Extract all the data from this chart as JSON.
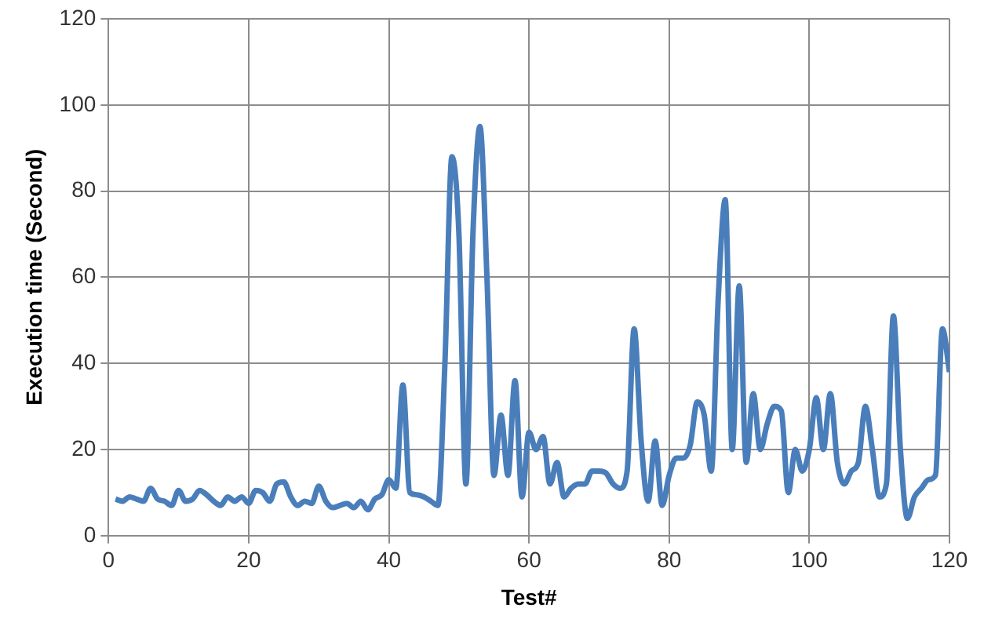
{
  "chart_data": {
    "type": "line",
    "xlabel": "Test#",
    "ylabel": "Execution time (Second)",
    "x": [
      1,
      2,
      3,
      4,
      5,
      6,
      7,
      8,
      9,
      10,
      11,
      12,
      13,
      14,
      15,
      16,
      17,
      18,
      19,
      20,
      21,
      22,
      23,
      24,
      25,
      26,
      27,
      28,
      29,
      30,
      31,
      32,
      33,
      34,
      35,
      36,
      37,
      38,
      39,
      40,
      41,
      42,
      43,
      44,
      45,
      46,
      47,
      48,
      49,
      50,
      51,
      52,
      53,
      54,
      55,
      56,
      57,
      58,
      59,
      60,
      61,
      62,
      63,
      64,
      65,
      66,
      67,
      68,
      69,
      70,
      71,
      72,
      73,
      74,
      75,
      76,
      77,
      78,
      79,
      80,
      81,
      82,
      83,
      84,
      85,
      86,
      87,
      88,
      89,
      90,
      91,
      92,
      93,
      94,
      95,
      96,
      97,
      98,
      99,
      100,
      101,
      102,
      103,
      104,
      105,
      106,
      107,
      108,
      109,
      110,
      111,
      112,
      113,
      114,
      115,
      116,
      117,
      118,
      119,
      120
    ],
    "series": [
      {
        "color": "#4a7ebb",
        "values": [
          8.5,
          8,
          9,
          8.5,
          8,
          11,
          8.5,
          8,
          7,
          10.5,
          8,
          8.5,
          10.5,
          9.5,
          8,
          7,
          9,
          8,
          9,
          7.5,
          10.5,
          10,
          8,
          12,
          12.5,
          9,
          7,
          8,
          7.5,
          11.5,
          8,
          6.5,
          7,
          7.5,
          6.5,
          8,
          6,
          8.5,
          9.5,
          13,
          11,
          35,
          10,
          9.5,
          9,
          8,
          7,
          40,
          88,
          70,
          12,
          70,
          95,
          60,
          14,
          28,
          14,
          36,
          9,
          24,
          20,
          23,
          12,
          17,
          9,
          11,
          12,
          12,
          15,
          15,
          14.5,
          12,
          11,
          15,
          48,
          22,
          8,
          22,
          7,
          14,
          18,
          18,
          21,
          31,
          28,
          15,
          55,
          78,
          20,
          58,
          17,
          33,
          20,
          26,
          30,
          29,
          10,
          20,
          15,
          20,
          32,
          20,
          33,
          17,
          12,
          15,
          17,
          30,
          20,
          9,
          12,
          51,
          20,
          4,
          9,
          11,
          13,
          14,
          48,
          38
        ]
      }
    ],
    "xlim": [
      0,
      120
    ],
    "xticks": [
      0,
      20,
      40,
      60,
      80,
      100,
      120
    ],
    "ylim": [
      0,
      120
    ],
    "yticks": [
      0,
      20,
      40,
      60,
      80,
      100,
      120
    ],
    "grid": true,
    "legend": false,
    "marker": "none",
    "line_style": "solid"
  }
}
